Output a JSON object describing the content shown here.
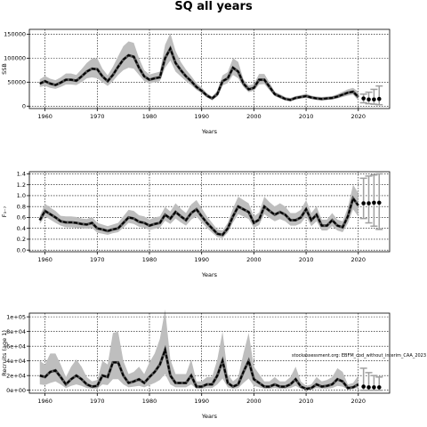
{
  "title": "SQ all years",
  "watermark": "stockassessment.org: EBFM_cod_without_interim_CAA_2023",
  "chart_data": [
    {
      "type": "line",
      "ylabel": "SSB",
      "xlabel": "Years",
      "xlim": [
        1957,
        2026
      ],
      "ylim": [
        -5000,
        160000
      ],
      "xticks": [
        1960,
        1970,
        1980,
        1990,
        2000,
        2010,
        2020
      ],
      "yticks": [
        0,
        50000,
        100000,
        150000
      ],
      "ytick_labels": [
        "0",
        "50000",
        "100000",
        "150000"
      ],
      "grid": true,
      "x": [
        1959,
        1960,
        1961,
        1962,
        1963,
        1964,
        1965,
        1966,
        1967,
        1968,
        1969,
        1970,
        1971,
        1972,
        1973,
        1974,
        1975,
        1976,
        1977,
        1978,
        1979,
        1980,
        1981,
        1982,
        1983,
        1984,
        1985,
        1986,
        1987,
        1988,
        1989,
        1990,
        1991,
        1992,
        1993,
        1994,
        1995,
        1996,
        1997,
        1998,
        1999,
        2000,
        2001,
        2002,
        2003,
        2004,
        2005,
        2006,
        2007,
        2008,
        2009,
        2010,
        2011,
        2012,
        2013,
        2014,
        2015,
        2016,
        2017,
        2018,
        2019,
        2020
      ],
      "estimate": [
        47000,
        52000,
        47000,
        44000,
        49000,
        55000,
        55000,
        53000,
        62000,
        72000,
        78000,
        77000,
        62000,
        52000,
        65000,
        82000,
        97000,
        106000,
        103000,
        80000,
        62000,
        55000,
        58000,
        60000,
        100000,
        120000,
        90000,
        75000,
        62000,
        52000,
        40000,
        32000,
        22000,
        16000,
        25000,
        52000,
        58000,
        80000,
        72000,
        47000,
        35000,
        38000,
        55000,
        55000,
        40000,
        25000,
        20000,
        15000,
        13000,
        17000,
        19000,
        21000,
        18000,
        16000,
        15000,
        16000,
        17000,
        20000,
        24000,
        28000,
        30000,
        19000
      ],
      "lower": [
        40000,
        42000,
        38000,
        36000,
        40000,
        45000,
        45000,
        44000,
        50000,
        58000,
        60000,
        58000,
        50000,
        42000,
        52000,
        65000,
        75000,
        80000,
        78000,
        65000,
        52000,
        47000,
        50000,
        52000,
        80000,
        95000,
        72000,
        62000,
        52000,
        44000,
        34000,
        27000,
        18000,
        13000,
        20000,
        43000,
        48000,
        65000,
        58000,
        40000,
        29000,
        32000,
        45000,
        46000,
        33000,
        21000,
        16000,
        12000,
        10000,
        14000,
        16000,
        17000,
        15000,
        13000,
        12000,
        13000,
        14000,
        16000,
        19000,
        22000,
        24000,
        12000
      ],
      "upper": [
        56000,
        63000,
        57000,
        54000,
        60000,
        68000,
        68000,
        65000,
        77000,
        90000,
        99000,
        100000,
        78000,
        64000,
        82000,
        104000,
        125000,
        135000,
        132000,
        100000,
        75000,
        66000,
        69000,
        72000,
        128000,
        152000,
        115000,
        92000,
        76000,
        63000,
        48000,
        39000,
        27000,
        20000,
        32000,
        64000,
        71000,
        100000,
        92000,
        56000,
        43000,
        46000,
        67000,
        67000,
        49000,
        30000,
        25000,
        19000,
        17000,
        21000,
        23000,
        26000,
        22000,
        20000,
        19000,
        20000,
        21000,
        25000,
        30000,
        35000,
        38000,
        30000
      ],
      "forecast": [
        {
          "x": 2021,
          "median": 16000,
          "low": 7000,
          "high": 25000
        },
        {
          "x": 2022,
          "median": 14000,
          "low": 5000,
          "high": 29000
        },
        {
          "x": 2023,
          "median": 14000,
          "low": 4000,
          "high": 35000
        },
        {
          "x": 2024,
          "median": 15000,
          "low": 3000,
          "high": 42000
        }
      ]
    },
    {
      "type": "line",
      "ylabel": "F₃₋₇",
      "xlabel": "Years",
      "xlim": [
        1957,
        2026
      ],
      "ylim": [
        -0.03,
        1.44
      ],
      "xticks": [
        1960,
        1970,
        1980,
        1990,
        2000,
        2010,
        2020
      ],
      "yticks": [
        0,
        0.2,
        0.4,
        0.6,
        0.8,
        1.0,
        1.2,
        1.4
      ],
      "ytick_labels": [
        "0.0",
        "0.2",
        "0.4",
        "0.6",
        "0.8",
        "1.0",
        "1.2",
        "1.4"
      ],
      "grid": true,
      "x": [
        1959,
        1960,
        1961,
        1962,
        1963,
        1964,
        1965,
        1966,
        1967,
        1968,
        1969,
        1970,
        1971,
        1972,
        1973,
        1974,
        1975,
        1976,
        1977,
        1978,
        1979,
        1980,
        1981,
        1982,
        1983,
        1984,
        1985,
        1986,
        1987,
        1988,
        1989,
        1990,
        1991,
        1992,
        1993,
        1994,
        1995,
        1996,
        1997,
        1998,
        1999,
        2000,
        2001,
        2002,
        2003,
        2004,
        2005,
        2006,
        2007,
        2008,
        2009,
        2010,
        2011,
        2012,
        2013,
        2014,
        2015,
        2016,
        2017,
        2018,
        2019,
        2020
      ],
      "estimate": [
        0.55,
        0.72,
        0.66,
        0.6,
        0.53,
        0.51,
        0.51,
        0.5,
        0.48,
        0.47,
        0.5,
        0.4,
        0.38,
        0.35,
        0.38,
        0.4,
        0.5,
        0.6,
        0.58,
        0.52,
        0.5,
        0.45,
        0.48,
        0.5,
        0.65,
        0.58,
        0.7,
        0.62,
        0.55,
        0.68,
        0.75,
        0.62,
        0.5,
        0.4,
        0.3,
        0.28,
        0.4,
        0.62,
        0.8,
        0.75,
        0.7,
        0.5,
        0.56,
        0.8,
        0.72,
        0.65,
        0.7,
        0.65,
        0.55,
        0.55,
        0.6,
        0.75,
        0.55,
        0.65,
        0.45,
        0.45,
        0.55,
        0.45,
        0.42,
        0.62,
        0.95,
        0.82
      ],
      "lower": [
        0.48,
        0.62,
        0.56,
        0.5,
        0.45,
        0.42,
        0.42,
        0.41,
        0.4,
        0.39,
        0.41,
        0.32,
        0.3,
        0.28,
        0.31,
        0.33,
        0.41,
        0.5,
        0.48,
        0.43,
        0.41,
        0.37,
        0.39,
        0.41,
        0.54,
        0.48,
        0.58,
        0.51,
        0.45,
        0.56,
        0.62,
        0.51,
        0.41,
        0.32,
        0.24,
        0.22,
        0.32,
        0.51,
        0.66,
        0.62,
        0.57,
        0.41,
        0.46,
        0.66,
        0.59,
        0.53,
        0.57,
        0.53,
        0.45,
        0.45,
        0.49,
        0.62,
        0.44,
        0.53,
        0.36,
        0.36,
        0.44,
        0.36,
        0.33,
        0.49,
        0.75,
        0.62
      ],
      "upper": [
        0.63,
        0.85,
        0.78,
        0.72,
        0.63,
        0.62,
        0.62,
        0.61,
        0.58,
        0.57,
        0.61,
        0.5,
        0.47,
        0.44,
        0.47,
        0.5,
        0.62,
        0.74,
        0.72,
        0.64,
        0.62,
        0.56,
        0.6,
        0.62,
        0.79,
        0.71,
        0.86,
        0.76,
        0.68,
        0.84,
        0.92,
        0.77,
        0.62,
        0.5,
        0.38,
        0.36,
        0.5,
        0.77,
        0.98,
        0.92,
        0.86,
        0.62,
        0.69,
        0.98,
        0.88,
        0.8,
        0.86,
        0.8,
        0.68,
        0.68,
        0.74,
        0.92,
        0.68,
        0.8,
        0.56,
        0.56,
        0.68,
        0.56,
        0.53,
        0.78,
        1.2,
        1.05
      ],
      "forecast": [
        {
          "x": 2021,
          "median": 0.86,
          "low": 0.58,
          "high": 1.32
        },
        {
          "x": 2022,
          "median": 0.86,
          "low": 0.5,
          "high": 1.36
        },
        {
          "x": 2023,
          "median": 0.87,
          "low": 0.44,
          "high": 1.38
        },
        {
          "x": 2024,
          "median": 0.87,
          "low": 0.38,
          "high": 1.4
        }
      ]
    },
    {
      "type": "line",
      "ylabel": "Recruits (age 1)",
      "xlabel": "Years",
      "xlim": [
        1957,
        2026
      ],
      "ylim": [
        -4,
        105
      ],
      "xticks": [
        1960,
        1970,
        1980,
        1990,
        2000,
        2010,
        2020
      ],
      "yticks": [
        0,
        20,
        40,
        60,
        80,
        100
      ],
      "ytick_labels": [
        "0e+00",
        "2e+04",
        "4e+04",
        "6e+04",
        "8e+04",
        "1e+05"
      ],
      "grid": true,
      "x": [
        1959,
        1960,
        1961,
        1962,
        1963,
        1964,
        1965,
        1966,
        1967,
        1968,
        1969,
        1970,
        1971,
        1972,
        1973,
        1974,
        1975,
        1976,
        1977,
        1978,
        1979,
        1980,
        1981,
        1982,
        1983,
        1984,
        1985,
        1986,
        1987,
        1988,
        1989,
        1990,
        1991,
        1992,
        1993,
        1994,
        1995,
        1996,
        1997,
        1998,
        1999,
        2000,
        2001,
        2002,
        2003,
        2004,
        2005,
        2006,
        2007,
        2008,
        2009,
        2010,
        2011,
        2012,
        2013,
        2014,
        2015,
        2016,
        2017,
        2018,
        2019,
        2020
      ],
      "estimate": [
        20,
        18,
        25,
        27,
        18,
        8,
        15,
        20,
        15,
        8,
        5,
        6,
        20,
        18,
        38,
        38,
        20,
        10,
        12,
        15,
        10,
        18,
        25,
        35,
        55,
        20,
        10,
        10,
        10,
        20,
        5,
        5,
        8,
        8,
        20,
        40,
        10,
        5,
        8,
        25,
        40,
        15,
        10,
        5,
        5,
        8,
        5,
        5,
        8,
        15,
        5,
        2,
        3,
        8,
        5,
        6,
        8,
        15,
        12,
        3,
        4,
        8
      ],
      "lower": [
        8,
        7,
        10,
        12,
        8,
        3,
        6,
        8,
        6,
        3,
        2,
        2,
        8,
        7,
        15,
        15,
        8,
        4,
        5,
        6,
        4,
        7,
        10,
        14,
        22,
        8,
        4,
        4,
        4,
        8,
        2,
        2,
        3,
        3,
        8,
        16,
        4,
        2,
        3,
        10,
        16,
        6,
        4,
        2,
        2,
        3,
        2,
        2,
        3,
        6,
        2,
        1,
        1,
        3,
        2,
        2,
        3,
        6,
        5,
        1,
        2,
        3
      ],
      "upper": [
        40,
        35,
        50,
        50,
        35,
        18,
        32,
        42,
        32,
        18,
        12,
        14,
        40,
        35,
        78,
        80,
        40,
        22,
        25,
        32,
        22,
        38,
        50,
        70,
        110,
        42,
        22,
        22,
        22,
        42,
        12,
        12,
        18,
        18,
        42,
        80,
        22,
        12,
        18,
        50,
        78,
        32,
        22,
        12,
        12,
        18,
        12,
        12,
        18,
        32,
        12,
        6,
        8,
        18,
        12,
        14,
        18,
        30,
        25,
        8,
        10,
        20
      ],
      "forecast": [
        {
          "x": 2021,
          "median": 5,
          "low": 0,
          "high": 30
        },
        {
          "x": 2022,
          "median": 4,
          "low": 0,
          "high": 24
        },
        {
          "x": 2023,
          "median": 4,
          "low": 0,
          "high": 20
        },
        {
          "x": 2024,
          "median": 4,
          "low": 0,
          "high": 18
        }
      ]
    }
  ],
  "colors": {
    "band": "#bebebe",
    "line": "#000000",
    "forecast_bar": "#a0a0a0",
    "dot": "#000000"
  }
}
